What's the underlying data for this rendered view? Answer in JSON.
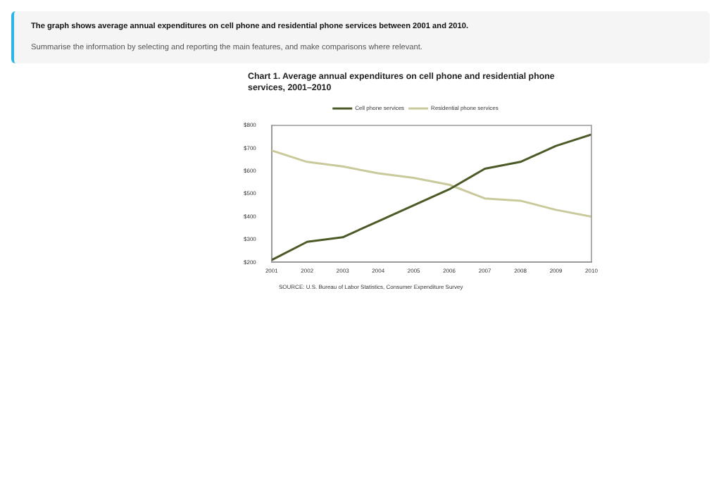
{
  "chart_data": {
    "type": "line",
    "title": "Chart 1.  Average annual  expenditures on cell phone and residential phone services, 2001–2010",
    "annotations": [
      "The graph shows average annual expenditures on cell phone and residential phone services between 2001 and 2010.",
      "Summarise the information by selecting and reporting the main features, and make comparisons where relevant.",
      "SOURCE: U.S. Bureau of Labor Statistics,  Consumer Expenditure Survey"
    ],
    "x": [
      2001,
      2002,
      2003,
      2004,
      2005,
      2006,
      2007,
      2008,
      2009,
      2010
    ],
    "xlim": [
      2001,
      2010
    ],
    "xticks": [
      2001,
      2002,
      2003,
      2004,
      2005,
      2006,
      2007,
      2008,
      2009,
      2010
    ],
    "ylim": [
      200,
      800
    ],
    "yticks": [
      {
        "value": 200,
        "label": "$200"
      },
      {
        "value": 300,
        "label": "$300"
      },
      {
        "value": 400,
        "label": "$400"
      },
      {
        "value": 500,
        "label": "$500"
      },
      {
        "value": 600,
        "label": "$600"
      },
      {
        "value": 700,
        "label": "$700"
      },
      {
        "value": 800,
        "label": "$800"
      }
    ],
    "series": [
      {
        "name": "Cell phone services",
        "color": "#4b5a26",
        "values": [
          210,
          290,
          310,
          380,
          450,
          520,
          610,
          640,
          710,
          760
        ]
      },
      {
        "name": "Residential phone services",
        "color": "#c9c99b",
        "values": [
          690,
          640,
          620,
          590,
          570,
          540,
          480,
          470,
          430,
          400
        ]
      }
    ],
    "grid": false,
    "legend": "top",
    "marker": "none",
    "line_style": "solid"
  }
}
